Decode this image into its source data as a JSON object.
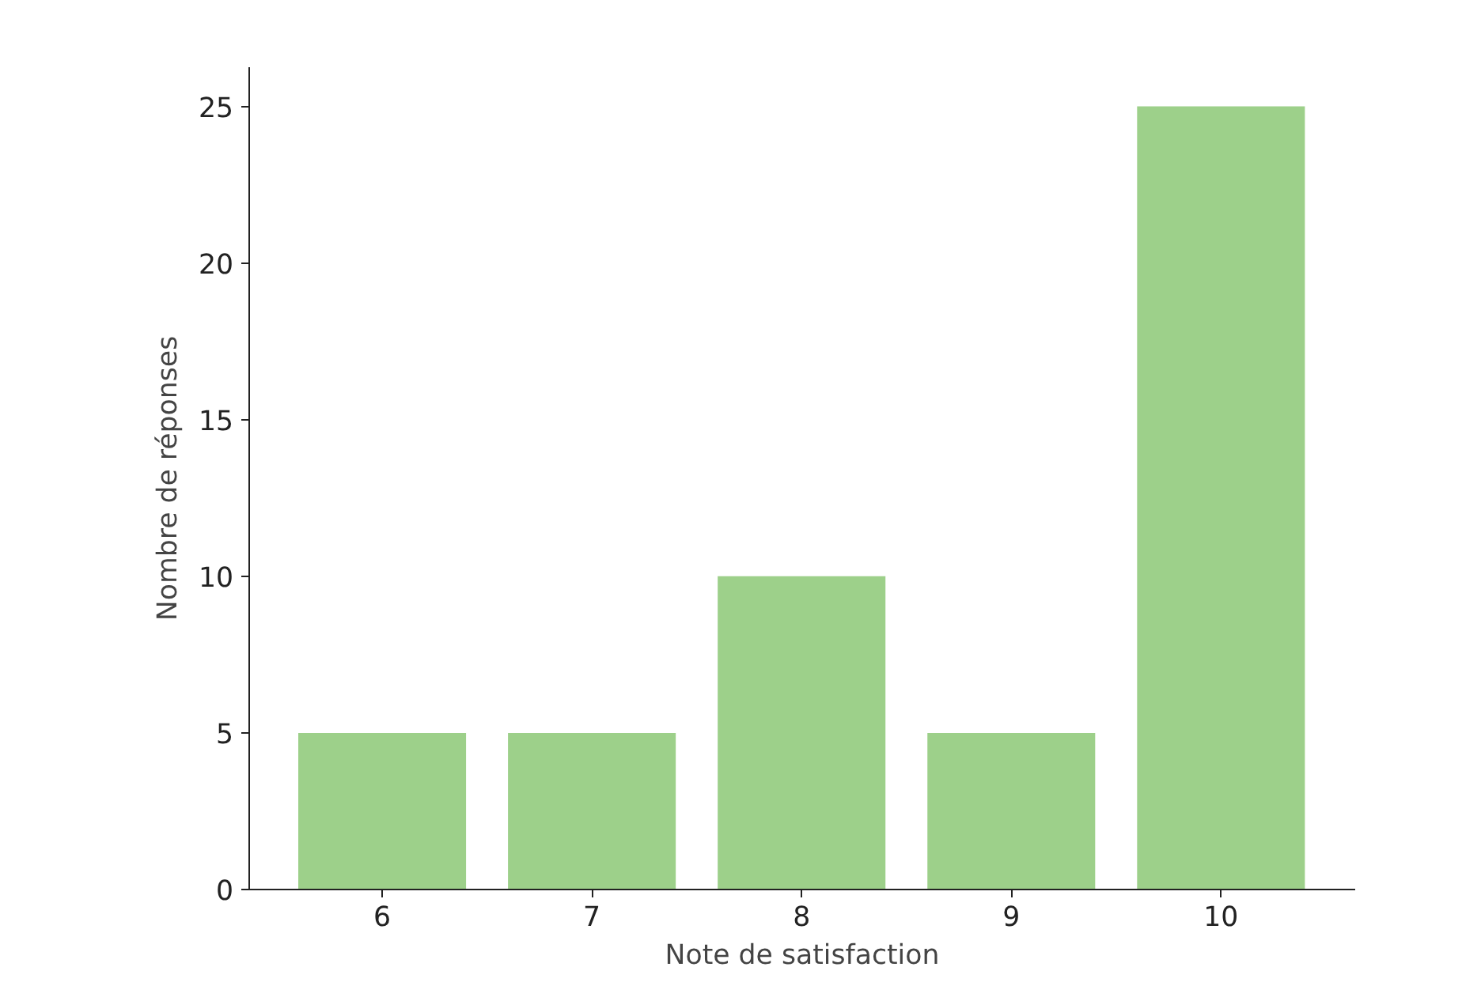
{
  "chart_data": {
    "type": "bar",
    "xlabel": "Note de satisfaction",
    "ylabel": "Nombre de réponses",
    "categories": [
      "6",
      "7",
      "8",
      "9",
      "10"
    ],
    "values": [
      5,
      5,
      10,
      5,
      25
    ],
    "color": "#9dd08a",
    "ylim": [
      0,
      26.25
    ],
    "yticks": [
      0,
      5,
      10,
      15,
      20,
      25
    ],
    "grid": false
  }
}
